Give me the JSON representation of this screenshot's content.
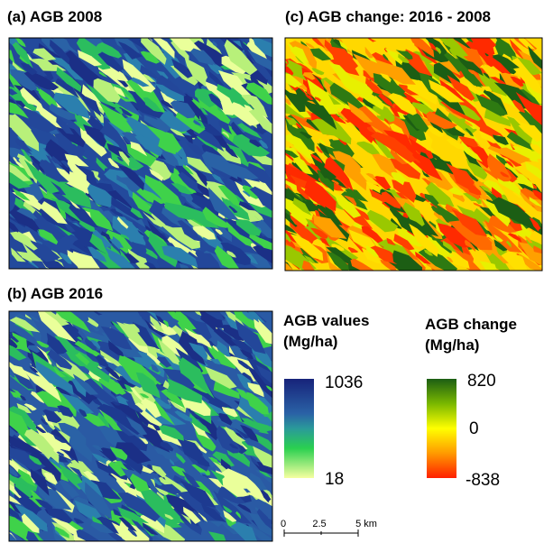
{
  "panels": [
    {
      "title": "(a) AGB 2008"
    },
    {
      "title": "(c) AGB change: 2016 - 2008"
    },
    {
      "title": "(b) AGB 2016"
    }
  ],
  "legends": [
    {
      "title_lines": [
        "AGB values",
        "(Mg/ha)"
      ],
      "labels": [
        "1036",
        "18"
      ]
    },
    {
      "title_lines": [
        "AGB change",
        "(Mg/ha)"
      ],
      "labels": [
        "820",
        "0",
        "-838"
      ]
    }
  ],
  "scale_bar": {
    "labels": [
      "0",
      "2.5",
      "5 km"
    ]
  }
}
